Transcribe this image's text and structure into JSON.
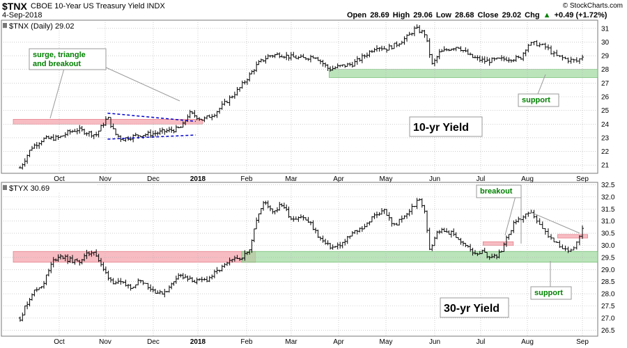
{
  "header": {
    "symbol": "$TNX",
    "name": "CBOE 10-Year US Treasury Yield INDX",
    "date": "4-Sep-2018",
    "open_label": "Open",
    "open": "28.69",
    "high_label": "High",
    "high": "29.06",
    "low_label": "Low",
    "low": "28.68",
    "close_label": "Close",
    "close": "29.02",
    "chg_label": "Chg",
    "chg": "+0.49 (+1.72%)",
    "chg_icon": "up-triangle-icon",
    "credit": "© StockCharts.com"
  },
  "colors": {
    "bars": "#000000",
    "resistance_zone": "#f4a0a8",
    "support_zone": "#9ed89e",
    "annotation_text": "#008000",
    "trendline": "#0000cc",
    "grid": "#b0b0b0"
  },
  "chart_data": [
    {
      "type": "ohlc",
      "title": "$TNX (Daily) 29.02",
      "x_ticks": [
        "Oct",
        "Nov",
        "Dec",
        "2018",
        "Feb",
        "Mar",
        "Apr",
        "May",
        "Jun",
        "Jul",
        "Aug",
        "Sep"
      ],
      "y_ticks": [
        21,
        22,
        23,
        24,
        25,
        26,
        27,
        28,
        29,
        30,
        31
      ],
      "ylim": [
        20.4,
        31.6
      ],
      "grid": true,
      "x_month_index": [
        0,
        1,
        2,
        3,
        4,
        5,
        6,
        7,
        8,
        9,
        10,
        11
      ],
      "anchors": [
        [
          -0.85,
          20.8
        ],
        [
          -0.6,
          22.3
        ],
        [
          -0.35,
          22.9
        ],
        [
          0,
          23.0
        ],
        [
          0.2,
          23.4
        ],
        [
          0.4,
          23.6
        ],
        [
          0.6,
          23.4
        ],
        [
          0.8,
          23.2
        ],
        [
          1.05,
          24.5
        ],
        [
          1.2,
          23.3
        ],
        [
          1.35,
          22.9
        ],
        [
          1.7,
          23.2
        ],
        [
          2.0,
          23.3
        ],
        [
          2.3,
          23.5
        ],
        [
          2.5,
          23.6
        ],
        [
          2.65,
          23.8
        ],
        [
          2.8,
          24.8
        ],
        [
          2.95,
          24.6
        ],
        [
          3.1,
          24.3
        ],
        [
          3.35,
          24.8
        ],
        [
          3.6,
          25.7
        ],
        [
          3.85,
          26.6
        ],
        [
          4.0,
          27.3
        ],
        [
          4.25,
          28.4
        ],
        [
          4.5,
          29.0
        ],
        [
          4.75,
          29.1
        ],
        [
          5.0,
          28.9
        ],
        [
          5.25,
          28.8
        ],
        [
          5.5,
          29.0
        ],
        [
          5.8,
          28.0
        ],
        [
          6.0,
          28.2
        ],
        [
          6.3,
          28.4
        ],
        [
          6.55,
          29.0
        ],
        [
          6.8,
          29.7
        ],
        [
          7.0,
          29.5
        ],
        [
          7.2,
          29.8
        ],
        [
          7.45,
          30.4
        ],
        [
          7.6,
          31.0
        ],
        [
          7.8,
          30.6
        ],
        [
          7.95,
          28.3
        ],
        [
          8.1,
          29.2
        ],
        [
          8.3,
          29.5
        ],
        [
          8.5,
          29.7
        ],
        [
          8.8,
          28.9
        ],
        [
          9.1,
          28.6
        ],
        [
          9.35,
          28.7
        ],
        [
          9.6,
          28.8
        ],
        [
          9.85,
          28.8
        ],
        [
          10.0,
          29.8
        ],
        [
          10.15,
          29.9
        ],
        [
          10.35,
          29.6
        ],
        [
          10.5,
          29.0
        ],
        [
          10.75,
          28.7
        ],
        [
          10.9,
          28.6
        ],
        [
          11.0,
          28.9
        ]
      ],
      "bars": 230,
      "zones": [
        {
          "role": "resistance",
          "x_from": -1.0,
          "x_to": 3.1,
          "y_from": 24.0,
          "y_to": 24.35
        },
        {
          "role": "support",
          "x_from": 5.8,
          "x_to": 11.5,
          "y_from": 27.4,
          "y_to": 28.0
        }
      ],
      "triangle": {
        "upper": [
          [
            1.05,
            24.8
          ],
          [
            2.95,
            24.2
          ]
        ],
        "lower": [
          [
            1.05,
            22.9
          ],
          [
            2.95,
            23.2
          ]
        ]
      },
      "annotations": {
        "surge": "surge, triangle\nand breakout",
        "support": "support",
        "series_label": "10-yr Yield"
      }
    },
    {
      "type": "ohlc",
      "title": "$TYX 30.69",
      "x_ticks": [
        "Oct",
        "Nov",
        "Dec",
        "2018",
        "Feb",
        "Mar",
        "Apr",
        "May",
        "Jun",
        "Jul",
        "Aug",
        "Sep"
      ],
      "y_ticks": [
        26.5,
        27.0,
        27.5,
        28.0,
        28.5,
        29.0,
        29.5,
        30.0,
        30.5,
        31.0,
        31.5,
        32.0,
        32.5
      ],
      "ylim": [
        26.25,
        32.6
      ],
      "grid": true,
      "anchors": [
        [
          -0.85,
          27.0
        ],
        [
          -0.6,
          28.0
        ],
        [
          -0.35,
          28.4
        ],
        [
          -0.15,
          29.3
        ],
        [
          0.0,
          29.6
        ],
        [
          0.2,
          29.4
        ],
        [
          0.4,
          29.3
        ],
        [
          0.6,
          29.6
        ],
        [
          0.75,
          29.8
        ],
        [
          0.95,
          29.0
        ],
        [
          1.15,
          28.5
        ],
        [
          1.35,
          28.4
        ],
        [
          1.55,
          28.3
        ],
        [
          1.75,
          28.6
        ],
        [
          1.95,
          28.2
        ],
        [
          2.15,
          28.0
        ],
        [
          2.35,
          28.2
        ],
        [
          2.55,
          28.8
        ],
        [
          2.75,
          28.6
        ],
        [
          3.0,
          28.5
        ],
        [
          3.2,
          28.6
        ],
        [
          3.45,
          29.0
        ],
        [
          3.65,
          29.3
        ],
        [
          3.85,
          29.5
        ],
        [
          4.05,
          29.7
        ],
        [
          4.2,
          31.0
        ],
        [
          4.4,
          31.8
        ],
        [
          4.6,
          31.4
        ],
        [
          4.8,
          31.7
        ],
        [
          5.0,
          31.1
        ],
        [
          5.2,
          31.2
        ],
        [
          5.4,
          30.9
        ],
        [
          5.6,
          30.3
        ],
        [
          5.75,
          30.0
        ],
        [
          5.9,
          29.9
        ],
        [
          6.1,
          30.1
        ],
        [
          6.3,
          30.5
        ],
        [
          6.55,
          30.8
        ],
        [
          6.75,
          31.2
        ],
        [
          6.95,
          31.5
        ],
        [
          7.15,
          30.8
        ],
        [
          7.35,
          31.1
        ],
        [
          7.55,
          31.6
        ],
        [
          7.7,
          31.9
        ],
        [
          7.8,
          31.3
        ],
        [
          7.9,
          29.8
        ],
        [
          8.05,
          30.6
        ],
        [
          8.25,
          30.6
        ],
        [
          8.45,
          30.4
        ],
        [
          8.65,
          30.0
        ],
        [
          8.85,
          29.7
        ],
        [
          9.05,
          29.7
        ],
        [
          9.25,
          29.5
        ],
        [
          9.45,
          29.7
        ],
        [
          9.6,
          30.5
        ],
        [
          9.75,
          31.0
        ],
        [
          9.95,
          31.2
        ],
        [
          10.1,
          31.3
        ],
        [
          10.25,
          30.7
        ],
        [
          10.45,
          30.2
        ],
        [
          10.65,
          29.8
        ],
        [
          10.8,
          29.8
        ],
        [
          10.95,
          30.4
        ],
        [
          11.0,
          30.7
        ]
      ],
      "bars": 230,
      "zones": [
        {
          "role": "resistance",
          "x_from": -1.0,
          "x_to": 4.2,
          "y_from": 29.3,
          "y_to": 29.75
        },
        {
          "role": "support",
          "x_from": 3.9,
          "x_to": 11.5,
          "y_from": 29.3,
          "y_to": 29.75
        },
        {
          "role": "minor-resistance",
          "x_from": 9.05,
          "x_to": 9.7,
          "y_from": 30.0,
          "y_to": 30.15
        },
        {
          "role": "minor-resistance",
          "x_from": 10.55,
          "x_to": 11.1,
          "y_from": 30.3,
          "y_to": 30.45
        }
      ],
      "annotations": {
        "breakout": "breakout",
        "support": "support",
        "series_label": "30-yr Yield"
      }
    }
  ]
}
